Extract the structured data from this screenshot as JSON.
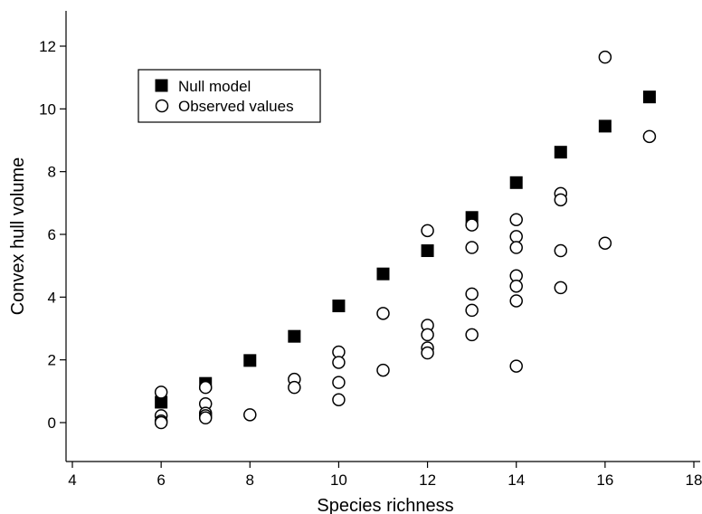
{
  "chart_data": {
    "type": "scatter",
    "title": "",
    "xlabel": "Species richness",
    "ylabel": "Convex hull volume",
    "xlim": [
      4,
      18
    ],
    "ylim": [
      -1.2,
      13.1
    ],
    "xticks": [
      "4",
      "6",
      "8",
      "10",
      "12",
      "14",
      "16",
      "18"
    ],
    "yticks": [
      "0",
      "2",
      "4",
      "6",
      "8",
      "10",
      "12"
    ],
    "grid": false,
    "legend_position": "top-left",
    "series": [
      {
        "name": "Null model",
        "marker": "filled-square",
        "color": "#000000",
        "points": [
          [
            6,
            0.65
          ],
          [
            7,
            1.25
          ],
          [
            8,
            1.98
          ],
          [
            9,
            2.75
          ],
          [
            10,
            3.72
          ],
          [
            11,
            4.74
          ],
          [
            12,
            5.48
          ],
          [
            13,
            6.54
          ],
          [
            14,
            7.65
          ],
          [
            15,
            8.62
          ],
          [
            16,
            9.45
          ],
          [
            17,
            10.38
          ]
        ]
      },
      {
        "name": "Observed values",
        "marker": "open-circle",
        "color": "#000000",
        "points": [
          [
            6,
            0.97
          ],
          [
            6,
            0.22
          ],
          [
            6,
            0.05
          ],
          [
            6,
            0.0
          ],
          [
            7,
            1.12
          ],
          [
            7,
            0.6
          ],
          [
            7,
            0.3
          ],
          [
            7,
            0.22
          ],
          [
            7,
            0.15
          ],
          [
            8,
            0.25
          ],
          [
            9,
            1.38
          ],
          [
            9,
            1.12
          ],
          [
            10,
            2.25
          ],
          [
            10,
            1.92
          ],
          [
            10,
            1.28
          ],
          [
            10,
            0.73
          ],
          [
            11,
            3.48
          ],
          [
            11,
            1.67
          ],
          [
            12,
            6.12
          ],
          [
            12,
            3.1
          ],
          [
            12,
            2.8
          ],
          [
            12,
            2.38
          ],
          [
            12,
            2.22
          ],
          [
            13,
            6.3
          ],
          [
            13,
            5.58
          ],
          [
            13,
            4.1
          ],
          [
            13,
            3.58
          ],
          [
            13,
            2.8
          ],
          [
            14,
            6.47
          ],
          [
            14,
            5.93
          ],
          [
            14,
            5.58
          ],
          [
            14,
            4.68
          ],
          [
            14,
            4.35
          ],
          [
            14,
            3.88
          ],
          [
            14,
            1.8
          ],
          [
            15,
            7.3
          ],
          [
            15,
            7.1
          ],
          [
            15,
            5.48
          ],
          [
            15,
            4.3
          ],
          [
            16,
            11.65
          ],
          [
            16,
            5.72
          ],
          [
            17,
            9.12
          ]
        ]
      }
    ]
  }
}
